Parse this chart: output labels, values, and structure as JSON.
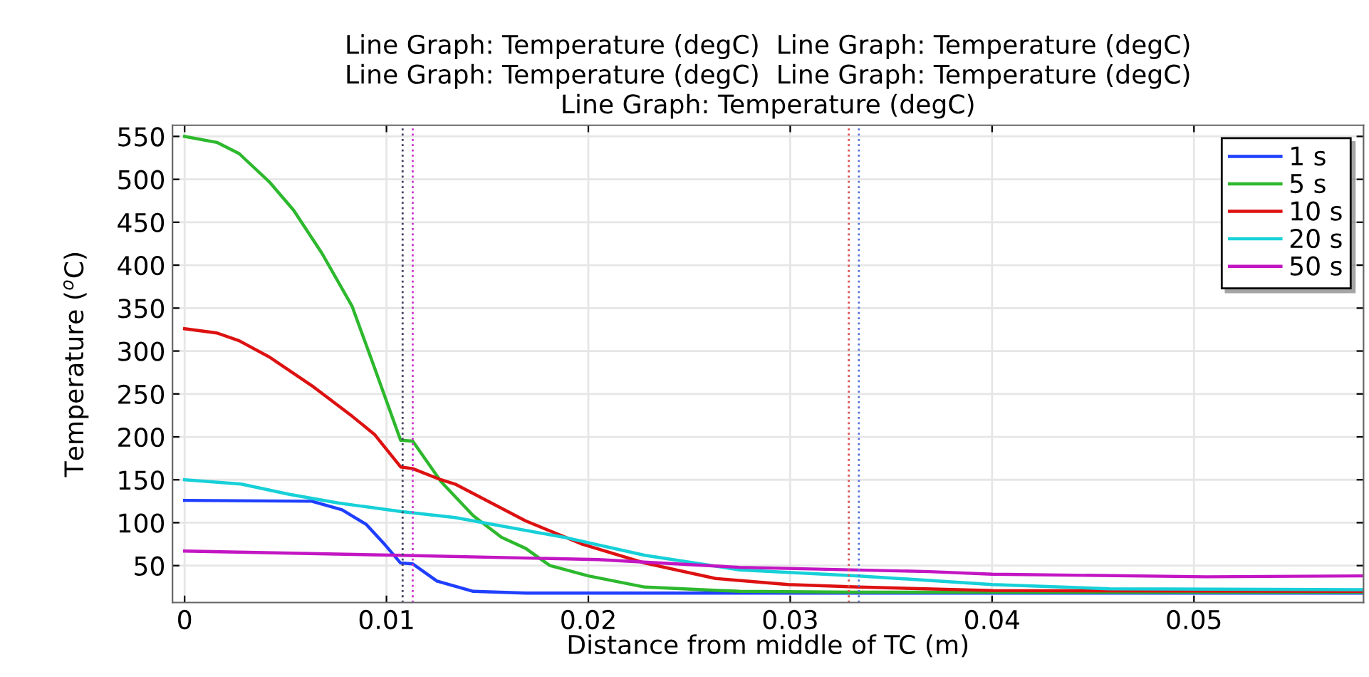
{
  "chart_data": {
    "type": "line",
    "title": "Line Graph: Temperature (degC)  Line Graph: Temperature (degC)\nLine Graph: Temperature (degC)  Line Graph: Temperature (degC)\nLine Graph: Temperature (degC)",
    "xlabel": "Distance from middle of TC (m)",
    "ylabel": "Temperature ($^{o}$C)",
    "series": [
      {
        "name": "1 s",
        "color": "#1f3fff",
        "x": [
          0,
          0.0063,
          0.0078,
          0.009,
          0.0099,
          0.0107,
          0.0113,
          0.0125,
          0.0143,
          0.0169,
          0.0583
        ],
        "values": [
          126,
          125,
          115,
          98,
          75,
          53,
          52,
          32,
          20,
          18,
          18
        ]
      },
      {
        "name": "5 s",
        "color": "#2db82d",
        "x": [
          0,
          0.0016,
          0.0027,
          0.0042,
          0.0054,
          0.0068,
          0.0083,
          0.0094,
          0.0107,
          0.0113,
          0.0127,
          0.0143,
          0.0157,
          0.0169,
          0.0181,
          0.02,
          0.0228,
          0.0275,
          0.0331,
          0.0583
        ],
        "values": [
          550,
          543,
          530,
          497,
          464,
          414,
          352,
          281,
          196,
          195,
          148,
          108,
          83,
          70,
          50,
          38,
          25,
          20,
          19,
          19
        ]
      },
      {
        "name": "10 s",
        "color": "#dd1111",
        "x": [
          0,
          0.0016,
          0.0027,
          0.0042,
          0.0064,
          0.0083,
          0.0094,
          0.0107,
          0.0113,
          0.0127,
          0.0134,
          0.0169,
          0.0197,
          0.0228,
          0.0263,
          0.0299,
          0.0334,
          0.04,
          0.0583
        ],
        "values": [
          326,
          321,
          312,
          293,
          258,
          224,
          203,
          165,
          163,
          150,
          145,
          102,
          75,
          53,
          35,
          28,
          25,
          21,
          20
        ]
      },
      {
        "name": "20 s",
        "color": "#17d0d8",
        "x": [
          0,
          0.0028,
          0.0052,
          0.0076,
          0.0107,
          0.0134,
          0.0188,
          0.0228,
          0.0275,
          0.0334,
          0.04,
          0.0458,
          0.0583
        ],
        "values": [
          150,
          145,
          133,
          123,
          113,
          106,
          83,
          62,
          45,
          38,
          28,
          23,
          22
        ]
      },
      {
        "name": "50 s",
        "color": "#c316c3",
        "x": [
          0,
          0.0107,
          0.0205,
          0.0275,
          0.0369,
          0.04,
          0.0506,
          0.0583
        ],
        "values": [
          67,
          62,
          57,
          48,
          43,
          40,
          37,
          38
        ]
      }
    ],
    "ref_lines": [
      {
        "axis": "x",
        "value": 0.0108,
        "color": "#404060",
        "line_style": "dotted"
      },
      {
        "axis": "x",
        "value": 0.0113,
        "color": "#cc33cc",
        "line_style": "dotted"
      },
      {
        "axis": "x",
        "value": 0.0329,
        "color": "#dd5555",
        "line_style": "dotted"
      },
      {
        "axis": "x",
        "value": 0.0334,
        "color": "#5577dd",
        "line_style": "dotted"
      }
    ],
    "xlim": [
      -0.0006,
      0.0584
    ],
    "ylim": [
      7,
      563
    ],
    "xticks": [
      0,
      0.01,
      0.02,
      0.03,
      0.04,
      0.05
    ],
    "yticks": [
      50,
      100,
      150,
      200,
      250,
      300,
      350,
      400,
      450,
      500,
      550
    ],
    "grid": true,
    "legend": "top right",
    "line_style": "solid",
    "marker": "none"
  }
}
